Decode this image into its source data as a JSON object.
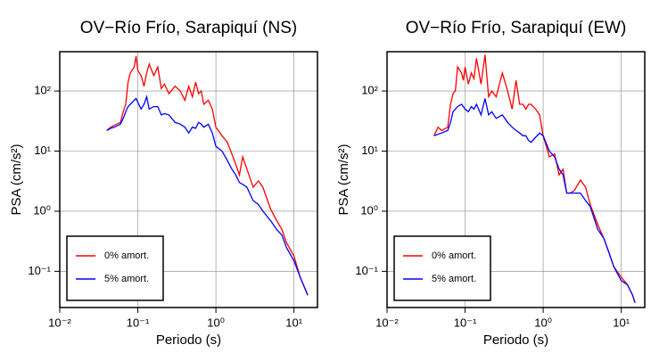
{
  "chart_data": [
    {
      "type": "line",
      "title": "OV−Río Frío, Sarapiquí (NS)",
      "x_label": "Periodo (s)",
      "y_label": "PSA (cm/s²)",
      "log_x": true,
      "log_y": true,
      "grid": true,
      "legend_position": "lower left",
      "xlim": [
        0.01,
        20
      ],
      "ylim": [
        0.025,
        450
      ],
      "xticks": [
        {
          "value": 0.01,
          "label": "10⁻²"
        },
        {
          "value": 0.1,
          "label": "10⁻¹"
        },
        {
          "value": 1,
          "label": "10⁰"
        },
        {
          "value": 10,
          "label": "10¹"
        }
      ],
      "yticks": [
        {
          "value": 0.1,
          "label": "10⁻¹"
        },
        {
          "value": 1,
          "label": "10⁰"
        },
        {
          "value": 10,
          "label": "10¹"
        },
        {
          "value": 100,
          "label": "10²"
        }
      ],
      "x": [
        0.04,
        0.045,
        0.05,
        0.06,
        0.065,
        0.07,
        0.075,
        0.08,
        0.09,
        0.095,
        0.1,
        0.11,
        0.12,
        0.13,
        0.14,
        0.16,
        0.18,
        0.2,
        0.22,
        0.25,
        0.3,
        0.35,
        0.4,
        0.45,
        0.5,
        0.55,
        0.6,
        0.65,
        0.7,
        0.8,
        0.9,
        1.0,
        1.2,
        1.4,
        1.6,
        1.8,
        2.0,
        2.2,
        2.5,
        3.0,
        3.5,
        4.0,
        5.0,
        6.0,
        7.0,
        8.0,
        10,
        12,
        14,
        15
      ],
      "series": [
        {
          "name": "0% amort.",
          "color": "#ff0000",
          "values": [
            22,
            25,
            27,
            30,
            45,
            60,
            140,
            200,
            250,
            380,
            220,
            180,
            120,
            200,
            280,
            180,
            250,
            110,
            130,
            90,
            120,
            100,
            70,
            120,
            80,
            140,
            90,
            100,
            60,
            70,
            50,
            25,
            18,
            14,
            9,
            6,
            4,
            8,
            5,
            2.5,
            3.2,
            2.5,
            1.1,
            0.7,
            0.5,
            0.3,
            0.18,
            0.08,
            0.05,
            0.04
          ]
        },
        {
          "name": "5% amort.",
          "color": "#0000ff",
          "values": [
            22,
            24,
            25,
            28,
            35,
            45,
            55,
            60,
            70,
            75,
            65,
            50,
            60,
            80,
            50,
            55,
            55,
            40,
            42,
            40,
            30,
            28,
            25,
            20,
            25,
            24,
            30,
            28,
            25,
            28,
            20,
            12,
            10,
            7,
            5,
            4,
            3,
            2.8,
            2.5,
            1.5,
            1.3,
            1.0,
            0.7,
            0.5,
            0.4,
            0.25,
            0.15,
            0.08,
            0.05,
            0.04
          ]
        }
      ]
    },
    {
      "type": "line",
      "title": "OV−Río Frío, Sarapiquí (EW)",
      "x_label": "Periodo (s)",
      "y_label": "PSA (cm/s²)",
      "log_x": true,
      "log_y": true,
      "grid": true,
      "legend_position": "lower left",
      "xlim": [
        0.01,
        20
      ],
      "ylim": [
        0.025,
        450
      ],
      "xticks": [
        {
          "value": 0.01,
          "label": "10⁻²"
        },
        {
          "value": 0.1,
          "label": "10⁻¹"
        },
        {
          "value": 1,
          "label": "10⁰"
        },
        {
          "value": 10,
          "label": "10¹"
        }
      ],
      "yticks": [
        {
          "value": 0.1,
          "label": "10⁻¹"
        },
        {
          "value": 1,
          "label": "10⁰"
        },
        {
          "value": 10,
          "label": "10¹"
        },
        {
          "value": 100,
          "label": "10²"
        }
      ],
      "x": [
        0.04,
        0.045,
        0.05,
        0.06,
        0.065,
        0.07,
        0.075,
        0.08,
        0.09,
        0.095,
        0.1,
        0.11,
        0.12,
        0.13,
        0.14,
        0.16,
        0.18,
        0.2,
        0.22,
        0.25,
        0.3,
        0.35,
        0.4,
        0.45,
        0.5,
        0.55,
        0.6,
        0.65,
        0.7,
        0.8,
        0.9,
        1.0,
        1.2,
        1.4,
        1.6,
        1.8,
        2.0,
        2.2,
        2.5,
        3.0,
        3.5,
        4.0,
        5.0,
        6.0,
        7.0,
        8.0,
        10,
        12,
        14,
        15
      ],
      "series": [
        {
          "name": "0% amort.",
          "color": "#ff0000",
          "values": [
            18,
            25,
            22,
            25,
            60,
            90,
            100,
            250,
            200,
            150,
            250,
            130,
            200,
            160,
            350,
            130,
            400,
            80,
            100,
            80,
            200,
            100,
            50,
            150,
            60,
            60,
            50,
            60,
            60,
            50,
            40,
            18,
            8,
            9,
            4,
            5,
            2,
            2,
            2.2,
            3.3,
            2.5,
            1.3,
            0.6,
            0.35,
            0.2,
            0.12,
            0.08,
            0.06,
            0.04,
            0.03
          ]
        },
        {
          "name": "5% amort.",
          "color": "#0000ff",
          "values": [
            18,
            19,
            20,
            22,
            30,
            45,
            50,
            55,
            60,
            55,
            50,
            45,
            55,
            50,
            60,
            40,
            75,
            40,
            45,
            35,
            40,
            30,
            25,
            22,
            20,
            18,
            18,
            15,
            14,
            17,
            20,
            18,
            10,
            8,
            5,
            4,
            2,
            2,
            2,
            2,
            1.5,
            1.2,
            0.5,
            0.35,
            0.2,
            0.12,
            0.07,
            0.06,
            0.04,
            0.03
          ]
        }
      ]
    }
  ]
}
